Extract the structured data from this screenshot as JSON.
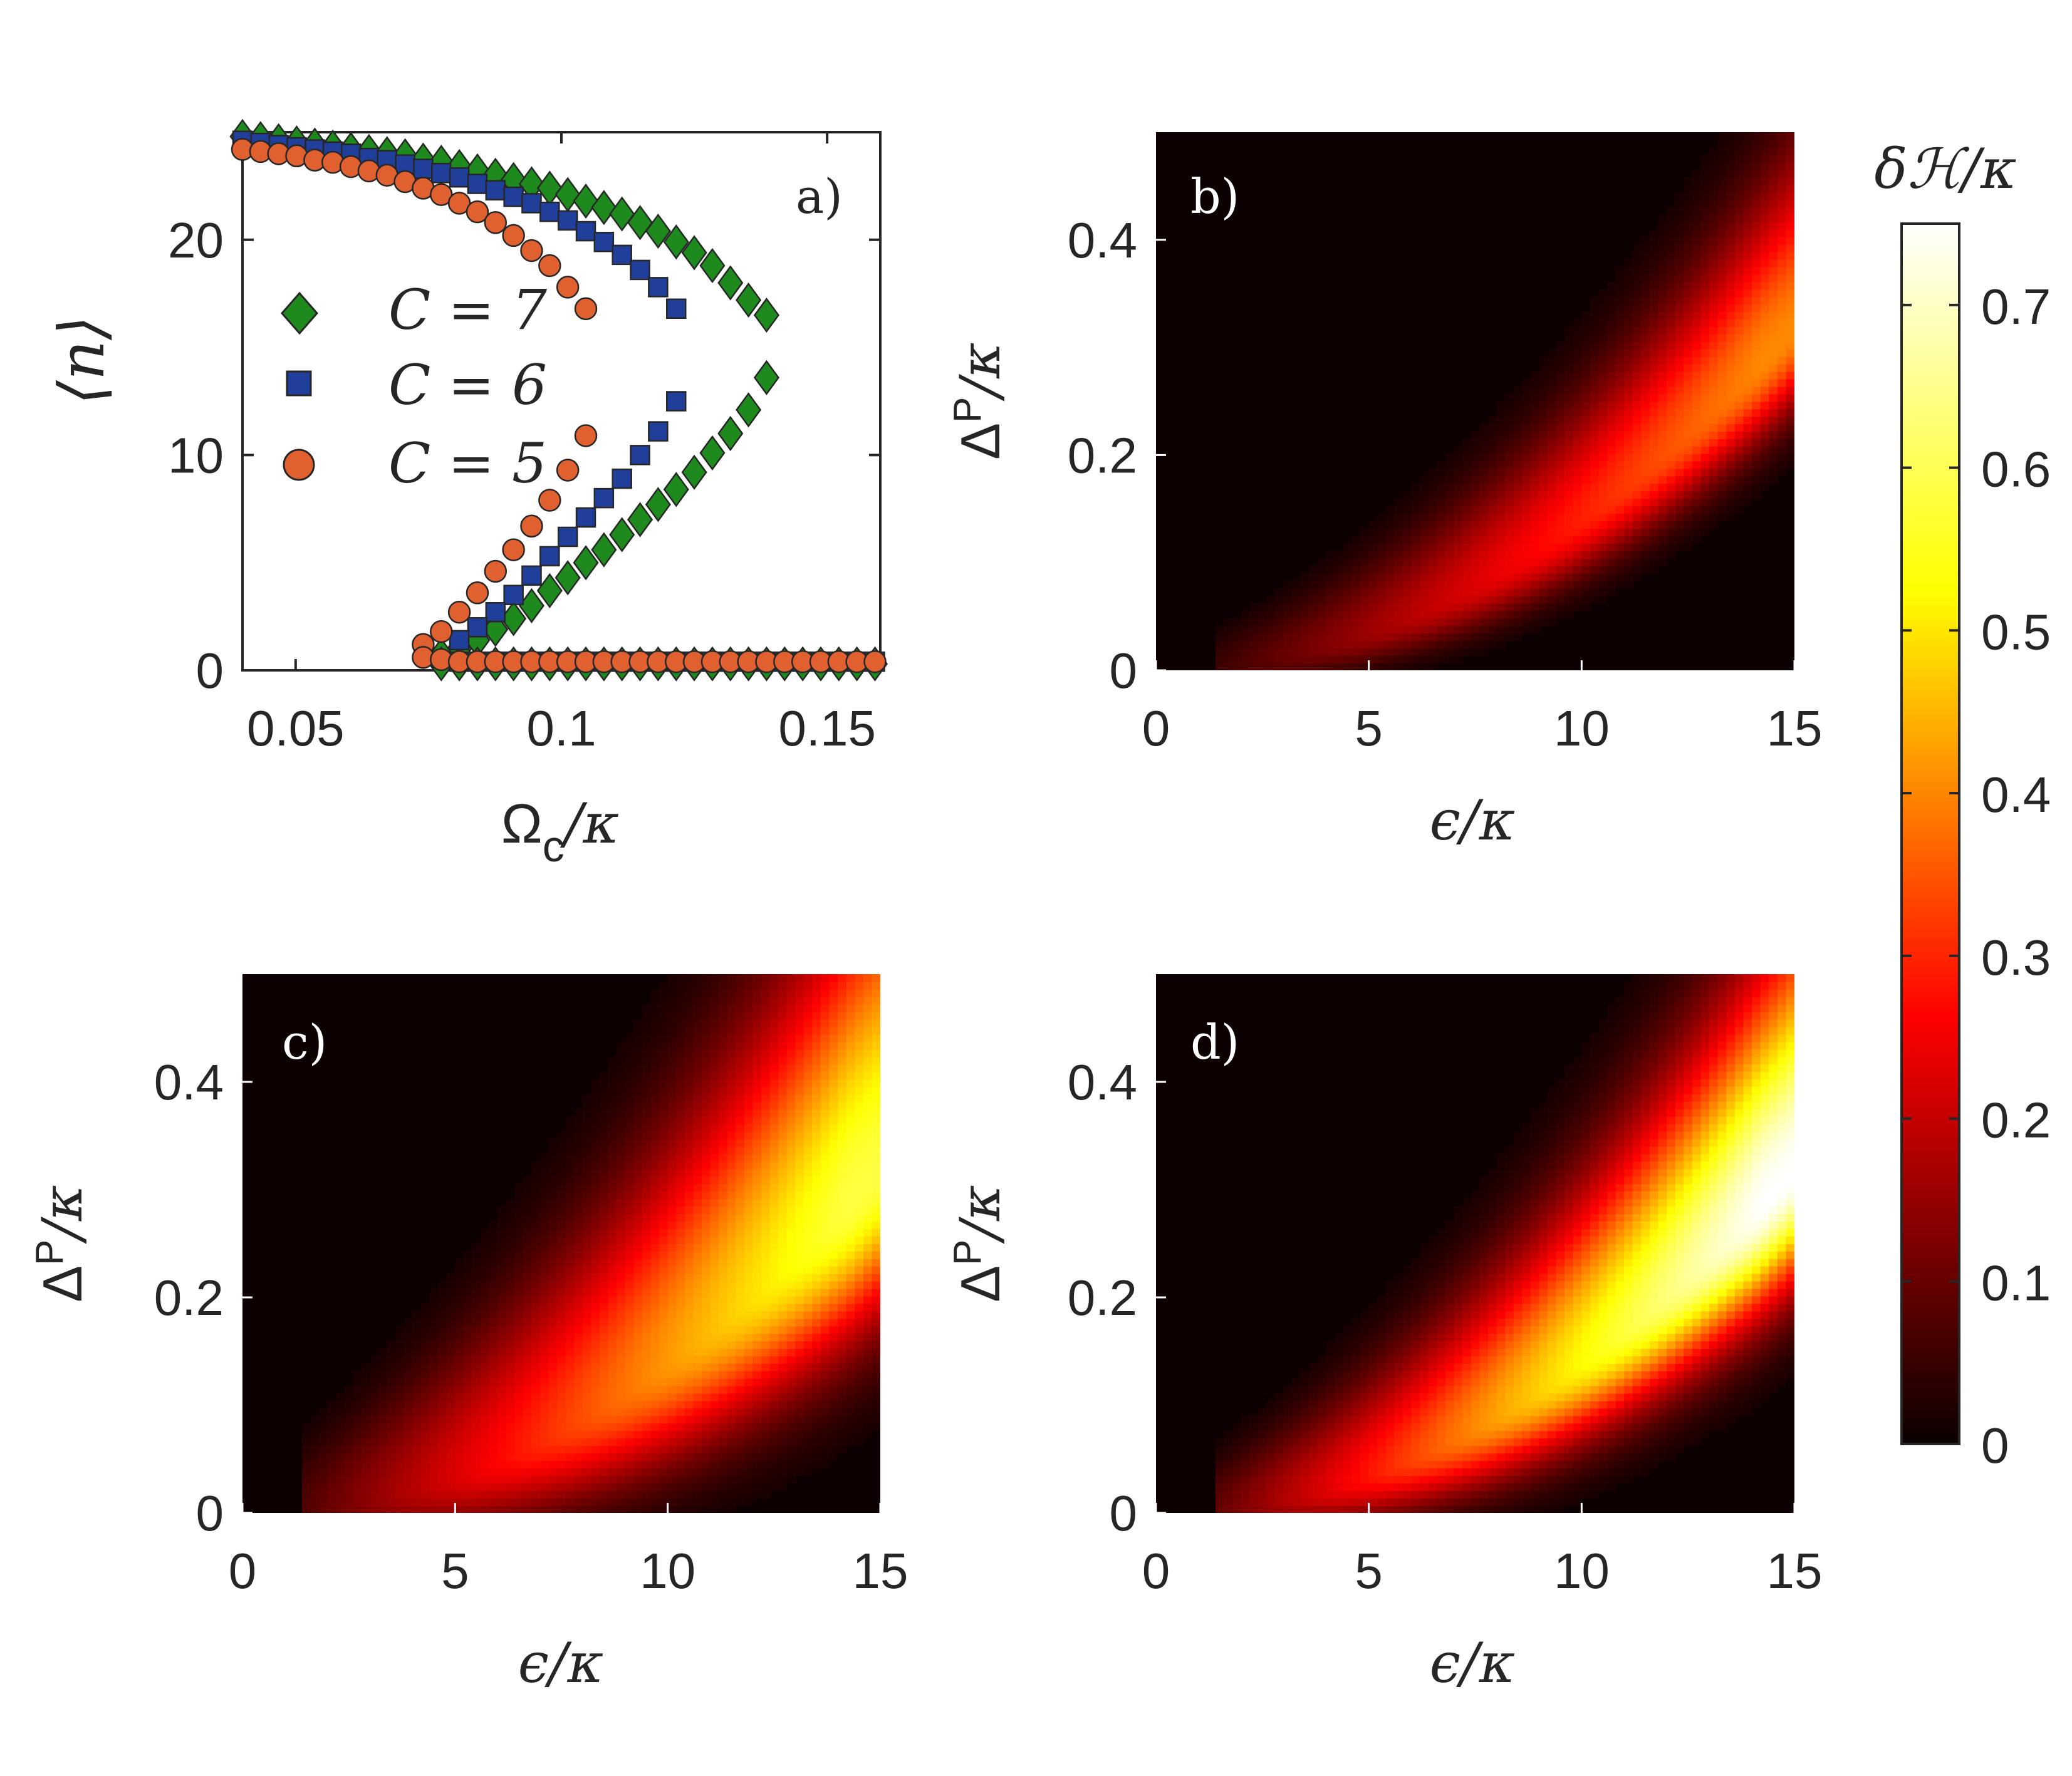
{
  "chart_data": [
    {
      "panel": "a",
      "type": "scatter",
      "panel_label": "a)",
      "xlabel_main": "Ω",
      "xlabel_sub": "c",
      "xlabel_tail": "/κ",
      "ylabel": "⟨n⟩",
      "xlim": [
        0.04,
        0.16
      ],
      "ylim": [
        0,
        25
      ],
      "xticks": [
        0.05,
        0.1,
        0.15
      ],
      "xtick_labels": [
        "0.05",
        "0.1",
        "0.15"
      ],
      "yticks": [
        0,
        10,
        20
      ],
      "ytick_labels": [
        "0",
        "10",
        "20"
      ],
      "legend": [
        "C = 7",
        "C = 6",
        "C = 5"
      ],
      "series": [
        {
          "name": "C = 7",
          "marker": "diamond",
          "color": "#1e8a1e",
          "upper": [
            [
              0.04,
              24.8
            ],
            [
              0.0434,
              24.7
            ],
            [
              0.0468,
              24.6
            ],
            [
              0.0502,
              24.5
            ],
            [
              0.0536,
              24.4
            ],
            [
              0.057,
              24.3
            ],
            [
              0.0604,
              24.2
            ],
            [
              0.0638,
              24.1
            ],
            [
              0.0672,
              24.0
            ],
            [
              0.0706,
              23.9
            ],
            [
              0.074,
              23.7
            ],
            [
              0.0774,
              23.6
            ],
            [
              0.0808,
              23.4
            ],
            [
              0.0842,
              23.2
            ],
            [
              0.0876,
              23.0
            ],
            [
              0.091,
              22.8
            ],
            [
              0.0944,
              22.6
            ],
            [
              0.0978,
              22.4
            ],
            [
              0.1012,
              22.1
            ],
            [
              0.1046,
              21.8
            ],
            [
              0.108,
              21.5
            ],
            [
              0.1114,
              21.2
            ],
            [
              0.1148,
              20.8
            ],
            [
              0.1182,
              20.4
            ],
            [
              0.1216,
              19.9
            ],
            [
              0.125,
              19.4
            ],
            [
              0.1284,
              18.8
            ],
            [
              0.1318,
              18.0
            ],
            [
              0.1352,
              17.2
            ],
            [
              0.1386,
              16.5
            ]
          ],
          "middle": [
            [
              0.1386,
              13.6
            ],
            [
              0.1352,
              12.1
            ],
            [
              0.1318,
              11.0
            ],
            [
              0.1284,
              10.1
            ],
            [
              0.125,
              9.2
            ],
            [
              0.1216,
              8.4
            ],
            [
              0.1182,
              7.7
            ],
            [
              0.1148,
              7.0
            ],
            [
              0.1114,
              6.3
            ],
            [
              0.108,
              5.6
            ],
            [
              0.1046,
              5.0
            ],
            [
              0.1012,
              4.3
            ],
            [
              0.0978,
              3.7
            ],
            [
              0.0944,
              3.0
            ],
            [
              0.091,
              2.4
            ],
            [
              0.0876,
              1.9
            ],
            [
              0.0842,
              1.4
            ],
            [
              0.0808,
              1.0
            ],
            [
              0.0774,
              0.7
            ]
          ],
          "lower": [
            [
              0.0774,
              0.3
            ],
            [
              0.0808,
              0.3
            ],
            [
              0.0842,
              0.3
            ],
            [
              0.0876,
              0.3
            ],
            [
              0.091,
              0.3
            ],
            [
              0.0944,
              0.3
            ],
            [
              0.0978,
              0.3
            ],
            [
              0.1012,
              0.3
            ],
            [
              0.1046,
              0.3
            ],
            [
              0.108,
              0.3
            ],
            [
              0.1114,
              0.3
            ],
            [
              0.1148,
              0.3
            ],
            [
              0.1182,
              0.3
            ],
            [
              0.1216,
              0.3
            ],
            [
              0.125,
              0.3
            ],
            [
              0.1284,
              0.3
            ],
            [
              0.1318,
              0.3
            ],
            [
              0.1352,
              0.3
            ],
            [
              0.1386,
              0.3
            ],
            [
              0.142,
              0.3
            ],
            [
              0.1454,
              0.3
            ],
            [
              0.1488,
              0.3
            ],
            [
              0.1522,
              0.3
            ],
            [
              0.1556,
              0.3
            ],
            [
              0.159,
              0.3
            ]
          ]
        },
        {
          "name": "C = 6",
          "marker": "square",
          "color": "#1f3f9a",
          "upper": [
            [
              0.04,
              24.6
            ],
            [
              0.0434,
              24.5
            ],
            [
              0.0468,
              24.4
            ],
            [
              0.0502,
              24.3
            ],
            [
              0.0536,
              24.2
            ],
            [
              0.057,
              24.1
            ],
            [
              0.0604,
              24.0
            ],
            [
              0.0638,
              23.8
            ],
            [
              0.0672,
              23.7
            ],
            [
              0.0706,
              23.5
            ],
            [
              0.074,
              23.3
            ],
            [
              0.0774,
              23.1
            ],
            [
              0.0808,
              22.9
            ],
            [
              0.0842,
              22.6
            ],
            [
              0.0876,
              22.3
            ],
            [
              0.091,
              22.0
            ],
            [
              0.0944,
              21.7
            ],
            [
              0.0978,
              21.3
            ],
            [
              0.1012,
              20.9
            ],
            [
              0.1046,
              20.4
            ],
            [
              0.108,
              19.9
            ],
            [
              0.1114,
              19.3
            ],
            [
              0.1148,
              18.6
            ],
            [
              0.1182,
              17.8
            ],
            [
              0.1216,
              16.8
            ]
          ],
          "middle": [
            [
              0.1216,
              12.5
            ],
            [
              0.1182,
              11.1
            ],
            [
              0.1148,
              10.0
            ],
            [
              0.1114,
              8.9
            ],
            [
              0.108,
              8.0
            ],
            [
              0.1046,
              7.1
            ],
            [
              0.1012,
              6.2
            ],
            [
              0.0978,
              5.3
            ],
            [
              0.0944,
              4.4
            ],
            [
              0.091,
              3.5
            ],
            [
              0.0876,
              2.7
            ],
            [
              0.0842,
              2.0
            ],
            [
              0.0808,
              1.4
            ]
          ],
          "lower": [
            [
              0.0808,
              0.4
            ],
            [
              0.0842,
              0.4
            ],
            [
              0.0876,
              0.4
            ],
            [
              0.091,
              0.4
            ],
            [
              0.0944,
              0.4
            ],
            [
              0.0978,
              0.4
            ],
            [
              0.1012,
              0.4
            ],
            [
              0.1046,
              0.4
            ],
            [
              0.108,
              0.4
            ],
            [
              0.1114,
              0.4
            ],
            [
              0.1148,
              0.4
            ],
            [
              0.1182,
              0.4
            ],
            [
              0.1216,
              0.4
            ],
            [
              0.125,
              0.4
            ],
            [
              0.1284,
              0.4
            ],
            [
              0.1318,
              0.4
            ],
            [
              0.1352,
              0.4
            ],
            [
              0.1386,
              0.4
            ],
            [
              0.142,
              0.4
            ],
            [
              0.1454,
              0.4
            ],
            [
              0.1488,
              0.4
            ],
            [
              0.1522,
              0.4
            ],
            [
              0.1556,
              0.4
            ],
            [
              0.159,
              0.4
            ]
          ]
        },
        {
          "name": "C = 5",
          "marker": "circle",
          "color": "#e06030",
          "upper": [
            [
              0.04,
              24.2
            ],
            [
              0.0434,
              24.1
            ],
            [
              0.0468,
              24.0
            ],
            [
              0.0502,
              23.9
            ],
            [
              0.0536,
              23.7
            ],
            [
              0.057,
              23.6
            ],
            [
              0.0604,
              23.4
            ],
            [
              0.0638,
              23.2
            ],
            [
              0.0672,
              23.0
            ],
            [
              0.0706,
              22.7
            ],
            [
              0.074,
              22.4
            ],
            [
              0.0774,
              22.1
            ],
            [
              0.0808,
              21.7
            ],
            [
              0.0842,
              21.3
            ],
            [
              0.0876,
              20.8
            ],
            [
              0.091,
              20.2
            ],
            [
              0.0944,
              19.5
            ],
            [
              0.0978,
              18.8
            ],
            [
              0.1012,
              17.8
            ],
            [
              0.1046,
              16.8
            ]
          ],
          "middle": [
            [
              0.1046,
              10.9
            ],
            [
              0.1012,
              9.3
            ],
            [
              0.0978,
              7.9
            ],
            [
              0.0944,
              6.7
            ],
            [
              0.091,
              5.6
            ],
            [
              0.0876,
              4.6
            ],
            [
              0.0842,
              3.6
            ],
            [
              0.0808,
              2.7
            ],
            [
              0.0774,
              1.8
            ],
            [
              0.074,
              1.2
            ]
          ],
          "lower": [
            [
              0.074,
              0.6
            ],
            [
              0.0774,
              0.5
            ],
            [
              0.0808,
              0.4
            ],
            [
              0.0842,
              0.4
            ],
            [
              0.0876,
              0.4
            ],
            [
              0.091,
              0.4
            ],
            [
              0.0944,
              0.4
            ],
            [
              0.0978,
              0.4
            ],
            [
              0.1012,
              0.4
            ],
            [
              0.1046,
              0.4
            ],
            [
              0.108,
              0.4
            ],
            [
              0.1114,
              0.4
            ],
            [
              0.1148,
              0.4
            ],
            [
              0.1182,
              0.4
            ],
            [
              0.1216,
              0.4
            ],
            [
              0.125,
              0.4
            ],
            [
              0.1284,
              0.4
            ],
            [
              0.1318,
              0.4
            ],
            [
              0.1352,
              0.4
            ],
            [
              0.1386,
              0.4
            ],
            [
              0.142,
              0.4
            ],
            [
              0.1454,
              0.4
            ],
            [
              0.1488,
              0.4
            ],
            [
              0.1522,
              0.4
            ],
            [
              0.1556,
              0.4
            ],
            [
              0.159,
              0.4
            ]
          ]
        }
      ]
    },
    {
      "panel": "b",
      "type": "heatmap",
      "panel_label": "b)",
      "xlabel": "ϵ/κ",
      "ylabel_main": "Δ",
      "ylabel_sub": "P",
      "ylabel_tail": "/κ",
      "xlim": [
        0,
        15
      ],
      "ylim": [
        0,
        0.5
      ],
      "xtick_labels": [
        "0",
        "5",
        "10",
        "15"
      ],
      "ytick_labels": [
        "0",
        "0.2",
        "0.4"
      ],
      "ridge": "Δ = 0.0014·ϵ^2",
      "peak_max": 0.42,
      "width_scale": 1.0
    },
    {
      "panel": "c",
      "type": "heatmap",
      "panel_label": "c)",
      "xlabel": "ϵ/κ",
      "ylabel_main": "Δ",
      "ylabel_sub": "P",
      "ylabel_tail": "/κ",
      "xlim": [
        0,
        15
      ],
      "ylim": [
        0,
        0.5
      ],
      "xtick_labels": [
        "0",
        "5",
        "10",
        "15"
      ],
      "ytick_labels": [
        "0",
        "0.2",
        "0.4"
      ],
      "ridge": "Δ = 0.0014·ϵ^2",
      "peak_max": 0.6,
      "width_scale": 1.8
    },
    {
      "panel": "d",
      "type": "heatmap",
      "panel_label": "d)",
      "xlabel": "ϵ/κ",
      "ylabel_main": "Δ",
      "ylabel_sub": "P",
      "ylabel_tail": "/κ",
      "xlim": [
        0,
        15
      ],
      "ylim": [
        0,
        0.5
      ],
      "xtick_labels": [
        "0",
        "5",
        "10",
        "15"
      ],
      "ytick_labels": [
        "0",
        "0.2",
        "0.4"
      ],
      "ridge": "Δ = 0.0014·ϵ^2",
      "peak_max": 0.75,
      "width_scale": 1.4
    },
    {
      "panel": "colorbar",
      "type": "colorbar",
      "title": "δℋ/κ",
      "range": [
        0,
        0.75
      ],
      "tick_values": [
        0,
        0.1,
        0.2,
        0.3,
        0.4,
        0.5,
        0.6,
        0.7
      ],
      "tick_labels": [
        "0",
        "0.1",
        "0.2",
        "0.3",
        "0.4",
        "0.5",
        "0.6",
        "0.7"
      ],
      "colormap": "hot"
    }
  ]
}
